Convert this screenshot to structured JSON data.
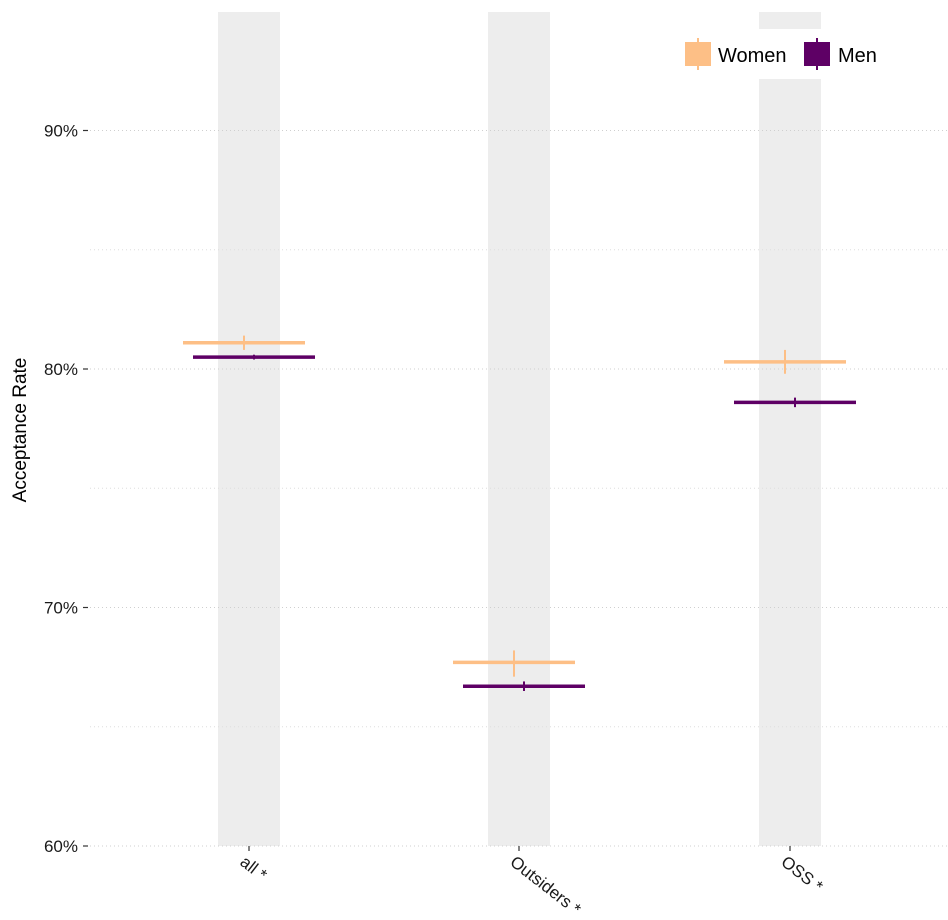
{
  "chart_data": {
    "type": "errorbar",
    "ylabel": "Acceptance Rate",
    "xlabel": "",
    "ylim": [
      60,
      95
    ],
    "yticks": [
      {
        "value": 60,
        "label": "60%"
      },
      {
        "value": 70,
        "label": "70%"
      },
      {
        "value": 80,
        "label": "80%"
      },
      {
        "value": 90,
        "label": "90%"
      }
    ],
    "minor_grid": [
      65,
      75,
      85
    ],
    "grid": true,
    "categories": [
      "all *",
      "Outsiders *",
      "OSS *"
    ],
    "series": [
      {
        "name": "Women",
        "color": "#FDBF86",
        "values": [
          81.1,
          67.7,
          80.3
        ],
        "error_low": [
          80.8,
          67.1,
          79.8
        ],
        "error_high": [
          81.4,
          68.2,
          80.8
        ]
      },
      {
        "name": "Men",
        "color": "#5E0065",
        "values": [
          80.5,
          66.7,
          78.6
        ],
        "error_low": [
          80.4,
          66.5,
          78.4
        ],
        "error_high": [
          80.6,
          66.9,
          78.8
        ]
      }
    ],
    "legend": {
      "position": "top-right",
      "entries": [
        {
          "label": "Women",
          "color": "#FDBF86"
        },
        {
          "label": "Men",
          "color": "#5E0065"
        }
      ]
    },
    "category_band_color": "#EDEDED"
  }
}
